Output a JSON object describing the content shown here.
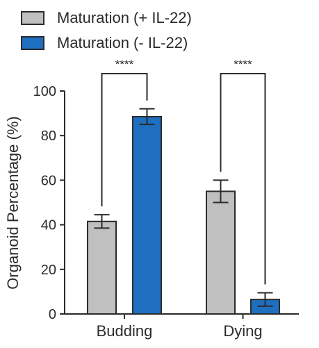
{
  "chart_data": {
    "type": "bar",
    "categories": [
      "Budding",
      "Dying"
    ],
    "series": [
      {
        "name": "Maturation (+ IL-22)",
        "values": [
          41.5,
          55.0
        ],
        "errors": [
          3.0,
          5.0
        ],
        "color": "#c0c0c0"
      },
      {
        "name": "Maturation (- IL-22)",
        "values": [
          88.5,
          6.5
        ],
        "errors": [
          3.5,
          3.0
        ],
        "color": "#1f6fc1"
      }
    ],
    "title": "",
    "xlabel": "",
    "ylabel": "Organoid Percentage (%)",
    "ylim": [
      0,
      100
    ],
    "yticks": [
      0,
      20,
      40,
      60,
      80,
      100
    ],
    "significance": [
      "****",
      "****"
    ],
    "legend_position": "top-left",
    "grid": false
  }
}
